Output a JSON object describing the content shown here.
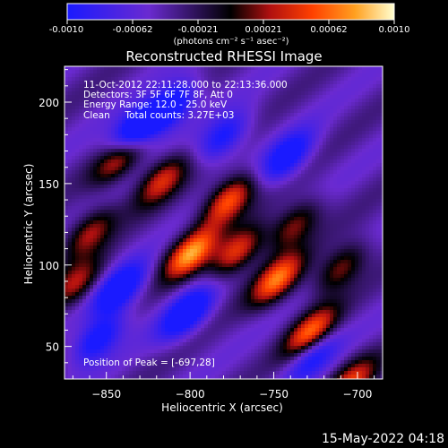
{
  "colorbar": {
    "ticks": [
      "-0.0010",
      "-0.00062",
      "-0.00021",
      "0.00021",
      "0.00062",
      "0.0010"
    ],
    "label": "(photons cm⁻² s⁻¹ asec⁻²)"
  },
  "chart_data": {
    "type": "heatmap",
    "title": "Reconstructed RHESSI Image",
    "xlabel": "Heliocentric X (arcsec)",
    "ylabel": "Heliocentric Y (arcsec)",
    "xlim": [
      -875,
      -685
    ],
    "ylim": [
      30,
      222
    ],
    "xticks": [
      -850,
      -800,
      -750,
      -700
    ],
    "yticks": [
      50,
      100,
      150,
      200
    ],
    "color_scale": {
      "min": -0.001,
      "max": 0.001
    },
    "colormap": [
      "#1a1aff",
      "#6a2ad0",
      "#000000",
      "#b01010",
      "#ff4000",
      "#ffa020",
      "#ffffd0"
    ],
    "peak": [
      -697,
      28
    ],
    "bright_sources": [
      {
        "x": -842,
        "y": 166,
        "value": 0.00075
      },
      {
        "x": -817,
        "y": 152,
        "value": 0.0007
      },
      {
        "x": -777,
        "y": 140,
        "value": 0.0009
      },
      {
        "x": -800,
        "y": 107,
        "value": 0.001
      },
      {
        "x": -772,
        "y": 108,
        "value": 0.0008
      },
      {
        "x": -748,
        "y": 91,
        "value": 0.0009
      },
      {
        "x": -738,
        "y": 124,
        "value": 0.0006
      },
      {
        "x": -728,
        "y": 58,
        "value": 0.00095
      },
      {
        "x": -710,
        "y": 98,
        "value": 0.0006
      },
      {
        "x": -704,
        "y": 28,
        "value": 0.0007
      },
      {
        "x": -860,
        "y": 120,
        "value": 0.0006
      },
      {
        "x": -868,
        "y": 88,
        "value": 0.0006
      }
    ],
    "dark_sources": [
      {
        "x": -833,
        "y": 182,
        "value": -0.001
      },
      {
        "x": -812,
        "y": 197,
        "value": -0.0008
      },
      {
        "x": -842,
        "y": 85,
        "value": -0.0008
      },
      {
        "x": -802,
        "y": 70,
        "value": -0.0008
      },
      {
        "x": -742,
        "y": 166,
        "value": -0.0007
      },
      {
        "x": -780,
        "y": 178,
        "value": -0.0006
      },
      {
        "x": -727,
        "y": 45,
        "value": -0.0006
      },
      {
        "x": -855,
        "y": 55,
        "value": -0.0007
      }
    ]
  },
  "annotations": {
    "time_range": "11-Oct-2012 22:11:28.000 to 22:13:36.000",
    "detectors": "Detectors: 3F 5F 6F 7F 8F, Att 0",
    "energy": "Energy Range: 12.0 - 25.0 keV",
    "clean": "Clean     Total counts: 3.27E+03",
    "peak_label": "Position of Peak = [-697,28]"
  },
  "footer": {
    "date": "15-May-2022 04:18"
  }
}
